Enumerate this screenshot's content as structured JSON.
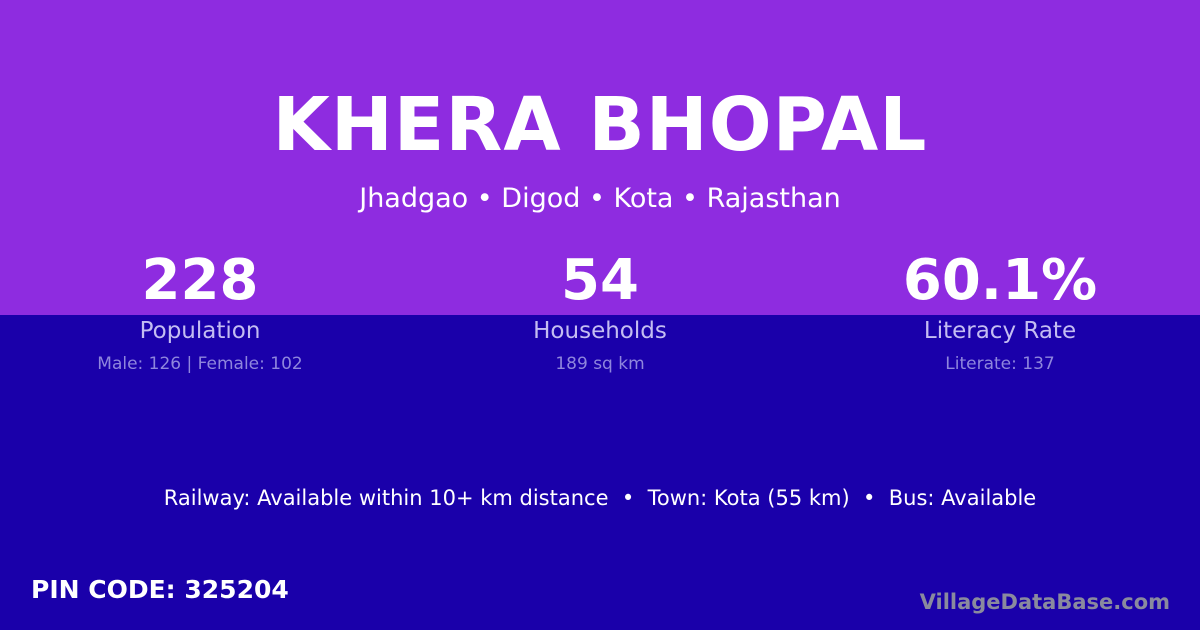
{
  "village": {
    "name": "KHERA BHOPAL",
    "location": "Jhadgao • Digod • Kota • Rajasthan"
  },
  "stats": [
    {
      "value": "228",
      "label": "Population",
      "detail": "Male: 126 | Female: 102"
    },
    {
      "value": "54",
      "label": "Households",
      "detail": "189 sq km"
    },
    {
      "value": "60.1%",
      "label": "Literacy Rate",
      "detail": "Literate: 137"
    }
  ],
  "facilities": "Railway: Available within 10+ km distance  •  Town: Kota (55 km)  •  Bus: Available",
  "pin": "PIN CODE: 325204",
  "brand": "VillageDataBase.com",
  "colors": {
    "top": "#8e2ce0",
    "bottom": "#1a00aa"
  }
}
